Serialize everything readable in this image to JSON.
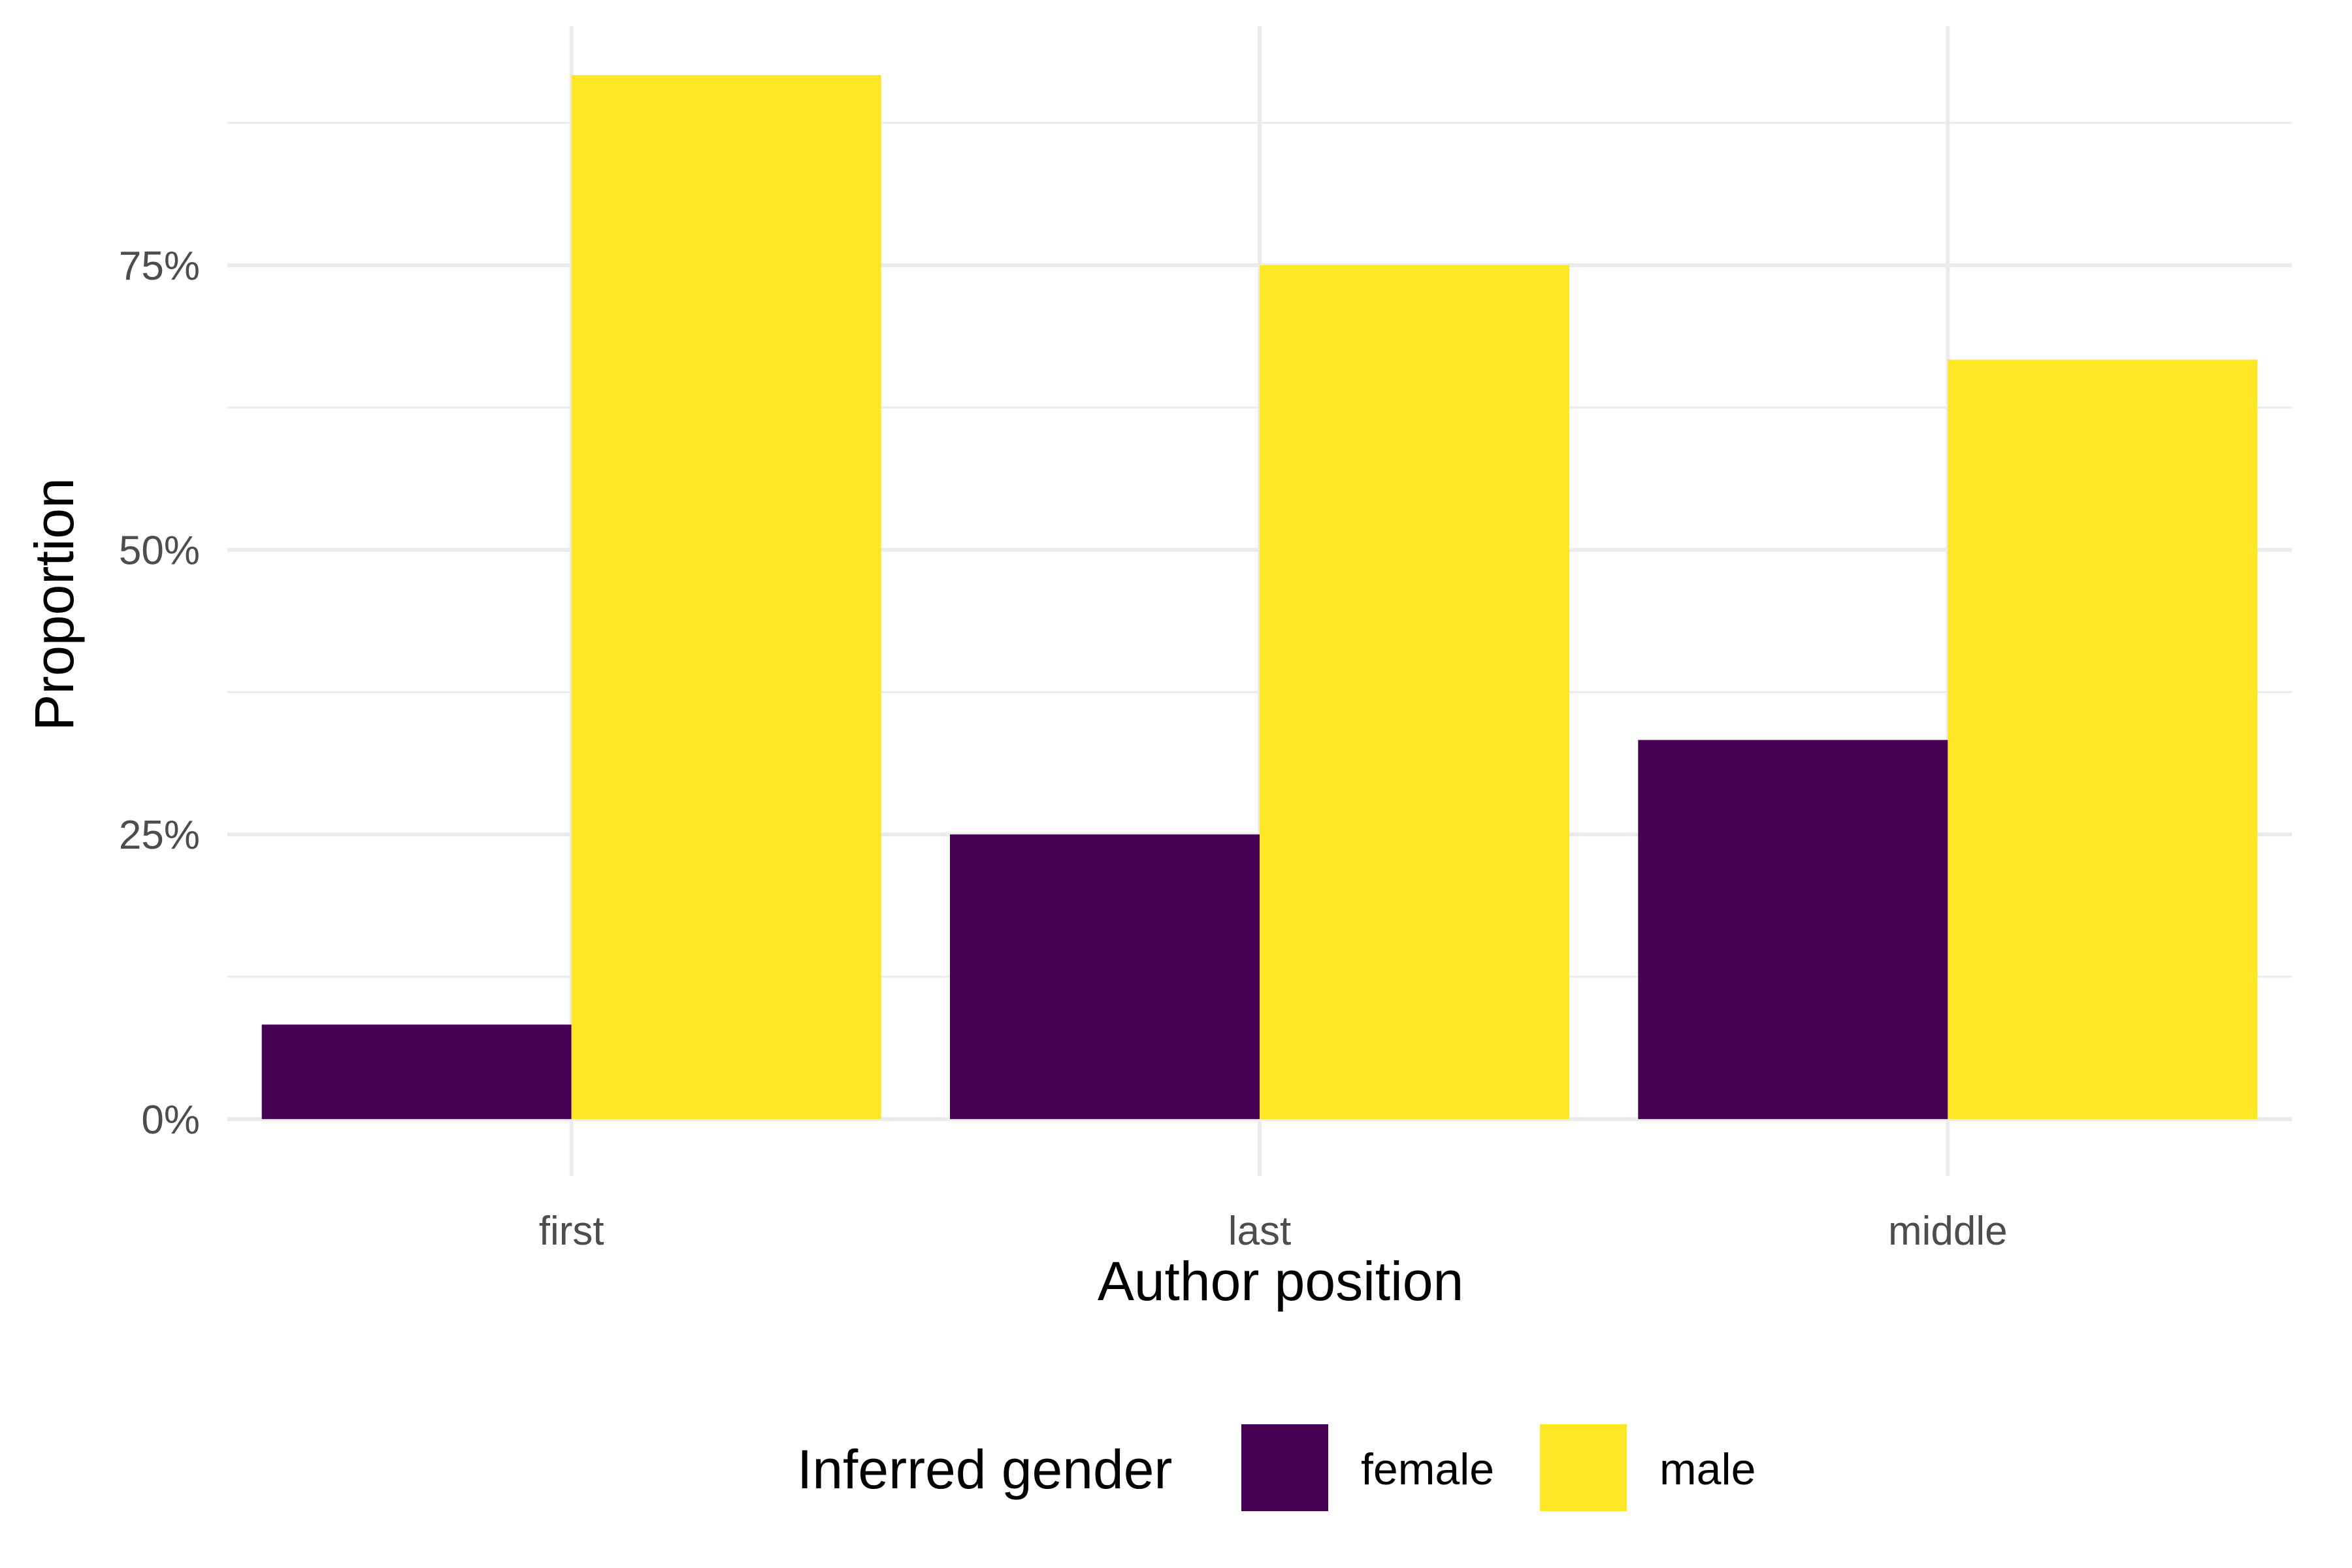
{
  "chart_data": {
    "type": "bar",
    "categories": [
      "first",
      "last",
      "middle"
    ],
    "series": [
      {
        "name": "female",
        "color": "#440154",
        "values": [
          0.083,
          0.25,
          0.333
        ]
      },
      {
        "name": "male",
        "color": "#FDE725",
        "values": [
          0.917,
          0.75,
          0.667
        ]
      }
    ],
    "xlabel": "Author position",
    "ylabel": "Proportion",
    "ylim": [
      -0.05,
      0.96
    ],
    "yticks": [
      0,
      0.25,
      0.5,
      0.75
    ],
    "ytick_labels": [
      "0%",
      "25%",
      "50%",
      "75%"
    ],
    "grid": true,
    "legend": {
      "title": "Inferred gender",
      "position": "bottom"
    }
  }
}
